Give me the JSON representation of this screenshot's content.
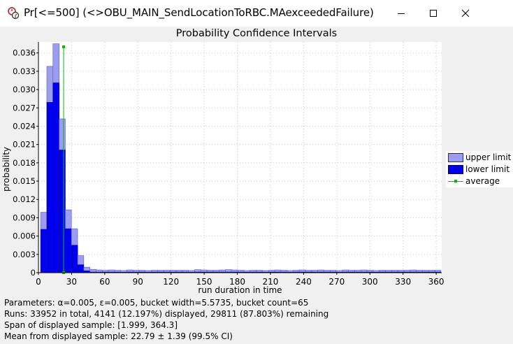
{
  "window": {
    "title": "Pr[<=500] (<>OBU_MAIN_SendLocationToRBC.MAexceededFailure)",
    "app_icon": "uppaal-stopwatch-icon",
    "controls": [
      "minimize-icon",
      "maximize-icon",
      "close-icon"
    ]
  },
  "colors": {
    "upper": "#9c9cf0",
    "lower": "#0000ee",
    "average": "#00c000",
    "grid": "#c8c8c8",
    "plot_bg": "#ffffff",
    "window_bg": "#f0f0f0"
  },
  "chart_data": {
    "type": "bar",
    "title": "Probability Confidence Intervals",
    "xlabel": "run duration in time",
    "ylabel": "probability",
    "xlim": [
      0,
      365
    ],
    "ylim": [
      0,
      0.0378
    ],
    "x_ticks": [
      "0",
      "30",
      "60",
      "90",
      "120",
      "150",
      "180",
      "210",
      "240",
      "270",
      "300",
      "330",
      "360"
    ],
    "y_ticks": [
      "0",
      "0.003",
      "0.006",
      "0.009",
      "0.012",
      "0.015",
      "0.018",
      "0.021",
      "0.024",
      "0.027",
      "0.030",
      "0.033",
      "0.036"
    ],
    "bucket_start": 1.999,
    "bucket_width": 5.5735,
    "upper": [
      0.0099,
      0.0338,
      0.0375,
      0.0252,
      0.0103,
      0.0072,
      0.0028,
      0.0009,
      0.00055,
      0.00045,
      0.0004,
      0.00045,
      0.0004,
      0.00035,
      0.00045,
      0.0004,
      0.0004,
      0.00035,
      0.0004,
      0.0004,
      0.0004,
      0.0004,
      0.0004,
      0.0004,
      0.00035,
      0.0005,
      0.00045,
      0.0004,
      0.0004,
      0.00045,
      0.0005,
      0.00045,
      0.0004,
      0.00035,
      0.0004,
      0.0004,
      0.00035,
      0.0004,
      0.00045,
      0.0004,
      0.00035,
      0.0004,
      0.00045,
      0.0004,
      0.0004,
      0.00045,
      0.0004,
      0.0004,
      0.00035,
      0.00045,
      0.0004,
      0.0004,
      0.00045,
      0.0004,
      0.00035,
      0.0004,
      0.0004,
      0.0004,
      0.0004,
      0.0004,
      0.00045,
      0.0004,
      0.0004,
      0.0004,
      0.0004
    ],
    "lower": [
      0.0071,
      0.0279,
      0.0311,
      0.0201,
      0.0072,
      0.0045,
      0.0013,
      0.0003,
      0.0001,
      0.0001,
      0.0001,
      0.0001,
      0.0001,
      8e-05,
      0.0001,
      0.0001,
      0.0001,
      8e-05,
      0.0001,
      0.0001,
      0.0001,
      0.0001,
      0.0001,
      0.0001,
      8e-05,
      0.0001,
      0.0001,
      0.0001,
      0.0001,
      0.0001,
      0.0001,
      0.0001,
      0.0001,
      8e-05,
      0.0001,
      0.0001,
      8e-05,
      0.0001,
      0.0001,
      0.0001,
      8e-05,
      0.0001,
      0.0001,
      0.0001,
      0.0001,
      0.0001,
      0.0001,
      0.0001,
      8e-05,
      0.0001,
      0.0001,
      0.0001,
      0.0001,
      0.0001,
      8e-05,
      0.0001,
      0.0001,
      0.0001,
      0.0001,
      0.0001,
      0.0001,
      0.0001,
      0.0001,
      0.0001,
      0.0001
    ],
    "average": 22.79,
    "legend": [
      "upper limit",
      "lower limit",
      "average"
    ],
    "legend_position": "right",
    "grid": true
  },
  "info": {
    "parameters": "Parameters: α=0.005, ε=0.005, bucket width=5.5735, bucket count=65",
    "runs": "Runs: 33952 in total, 4141 (12.197%) displayed, 29811 (87.803%) remaining",
    "span": "Span of displayed sample: [1.999, 364.3]",
    "mean": "Mean from displayed sample: 22.79 ± 1.39 (99.5% CI)"
  }
}
